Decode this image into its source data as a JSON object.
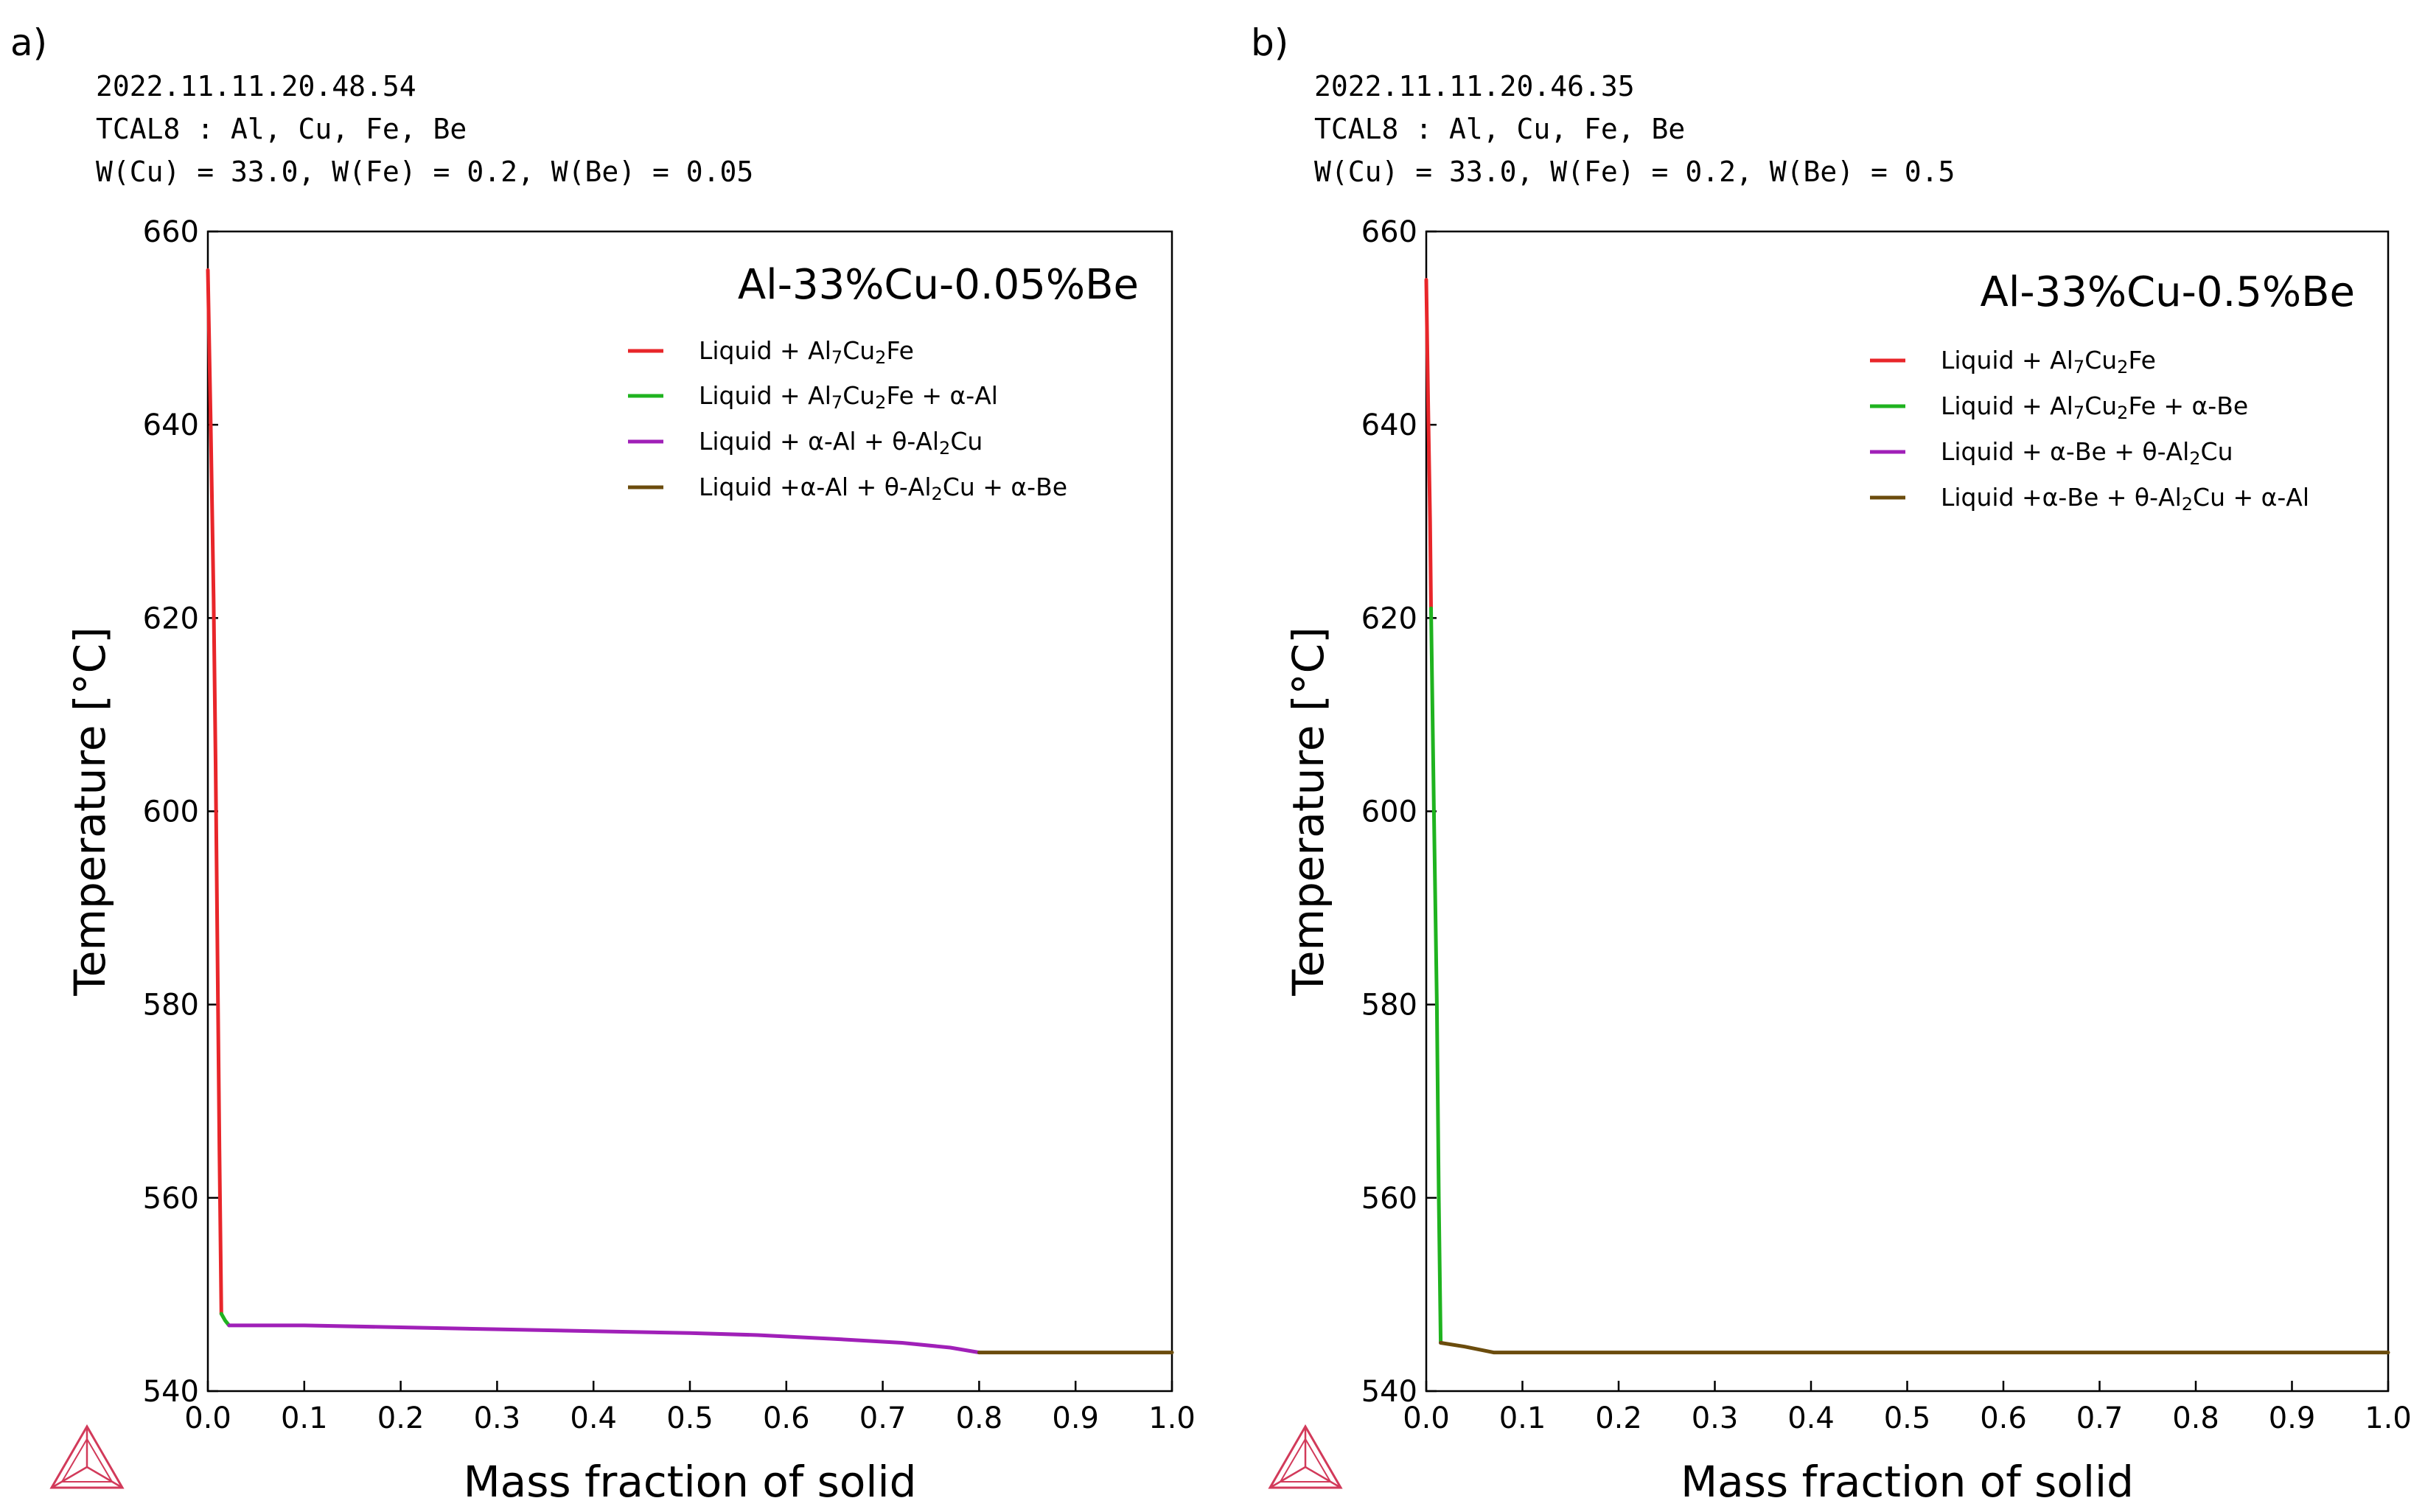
{
  "chart_data": [
    {
      "type": "line",
      "panel_label": "a)",
      "meta": [
        "2022.11.11.20.48.54",
        "TCAL8 : Al, Cu, Fe, Be",
        "W(Cu) = 33.0, W(Fe) = 0.2, W(Be) = 0.05"
      ],
      "title": "Al-33%Cu-0.05%Be",
      "xlabel": "Mass fraction of solid",
      "ylabel": "Temperature [°C]",
      "xlim": [
        0.0,
        1.0
      ],
      "ylim": [
        540,
        660
      ],
      "xticks": [
        "0.0",
        "0.1",
        "0.2",
        "0.3",
        "0.4",
        "0.5",
        "0.6",
        "0.7",
        "0.8",
        "0.9",
        "1.0"
      ],
      "yticks": [
        "540",
        "560",
        "580",
        "600",
        "620",
        "640",
        "660"
      ],
      "series": [
        {
          "name": "Liquid + Al7Cu2Fe",
          "legend": [
            [
              "Liquid + Al",
              ""
            ],
            [
              "7",
              "sub"
            ],
            [
              "Cu",
              ""
            ],
            [
              "2",
              "sub"
            ],
            [
              "Fe",
              ""
            ]
          ],
          "color": "#e8262a",
          "x": [
            0.0,
            0.003,
            0.006,
            0.008,
            0.01,
            0.012,
            0.014
          ],
          "y": [
            656,
            640,
            622,
            605,
            585,
            565,
            548
          ]
        },
        {
          "name": "Liquid + Al7Cu2Fe + α-Al",
          "legend": [
            [
              "Liquid + Al",
              ""
            ],
            [
              "7",
              "sub"
            ],
            [
              "Cu",
              ""
            ],
            [
              "2",
              "sub"
            ],
            [
              "Fe + α-Al",
              ""
            ]
          ],
          "color": "#1fb31f",
          "x": [
            0.014,
            0.018,
            0.022
          ],
          "y": [
            548,
            547.3,
            546.8
          ]
        },
        {
          "name": "Liquid + α-Al + θ-Al2Cu",
          "legend": [
            [
              "Liquid + α-Al + θ-Al",
              ""
            ],
            [
              "2",
              "sub"
            ],
            [
              "Cu",
              ""
            ]
          ],
          "color": "#a020b8",
          "x": [
            0.022,
            0.1,
            0.2,
            0.3,
            0.4,
            0.5,
            0.57,
            0.65,
            0.72,
            0.77,
            0.8
          ],
          "y": [
            546.8,
            546.8,
            546.6,
            546.4,
            546.2,
            546.0,
            545.8,
            545.4,
            545.0,
            544.5,
            544.0
          ]
        },
        {
          "name": "Liquid +α-Al + θ-Al2Cu + α-Be",
          "legend": [
            [
              "Liquid +α-Al + θ-Al",
              ""
            ],
            [
              "2",
              "sub"
            ],
            [
              "Cu + α-Be",
              ""
            ]
          ],
          "color": "#6b4c0d",
          "x": [
            0.8,
            1.0
          ],
          "y": [
            544.0,
            544.0
          ]
        }
      ]
    },
    {
      "type": "line",
      "panel_label": "b)",
      "meta": [
        "2022.11.11.20.46.35",
        "TCAL8 : Al, Cu, Fe, Be",
        "W(Cu) = 33.0, W(Fe) = 0.2, W(Be) = 0.5"
      ],
      "title": "Al-33%Cu-0.5%Be",
      "xlabel": "Mass fraction of solid",
      "ylabel": "Temperature [°C]",
      "xlim": [
        0.0,
        1.0
      ],
      "ylim": [
        540,
        660
      ],
      "xticks": [
        "0.0",
        "0.1",
        "0.2",
        "0.3",
        "0.4",
        "0.5",
        "0.6",
        "0.7",
        "0.8",
        "0.9",
        "1.0"
      ],
      "yticks": [
        "540",
        "560",
        "580",
        "600",
        "620",
        "640",
        "660"
      ],
      "series": [
        {
          "name": "Liquid + Al7Cu2Fe",
          "legend": [
            [
              "Liquid + Al",
              ""
            ],
            [
              "7",
              "sub"
            ],
            [
              "Cu",
              ""
            ],
            [
              "2",
              "sub"
            ],
            [
              "Fe",
              ""
            ]
          ],
          "color": "#e8262a",
          "x": [
            0.0,
            0.002,
            0.004,
            0.005
          ],
          "y": [
            655,
            642,
            630,
            621
          ]
        },
        {
          "name": "Liquid + Al7Cu2Fe + α-Be",
          "legend": [
            [
              "Liquid + Al",
              ""
            ],
            [
              "7",
              "sub"
            ],
            [
              "Cu",
              ""
            ],
            [
              "2",
              "sub"
            ],
            [
              "Fe + α-Be",
              ""
            ]
          ],
          "color": "#1fb31f",
          "x": [
            0.005,
            0.008,
            0.011,
            0.013,
            0.015
          ],
          "y": [
            621,
            600,
            580,
            560,
            545
          ]
        },
        {
          "name": "Liquid + α-Be + θ-Al2Cu",
          "legend": [
            [
              "Liquid + α-Be + θ-Al",
              ""
            ],
            [
              "2",
              "sub"
            ],
            [
              "Cu",
              ""
            ]
          ],
          "color": "#a020b8",
          "x": [
            0.015,
            0.016
          ],
          "y": [
            545,
            545
          ]
        },
        {
          "name": "Liquid +α-Be + θ-Al2Cu + α-Al",
          "legend": [
            [
              "Liquid +α-Be + θ-Al",
              ""
            ],
            [
              "2",
              "sub"
            ],
            [
              "Cu + α-Al",
              ""
            ]
          ],
          "color": "#6b4c0d",
          "x": [
            0.015,
            0.04,
            0.07,
            0.2,
            0.5,
            1.0
          ],
          "y": [
            545.0,
            544.6,
            544.0,
            544.0,
            544.0,
            544.0
          ]
        }
      ]
    }
  ]
}
